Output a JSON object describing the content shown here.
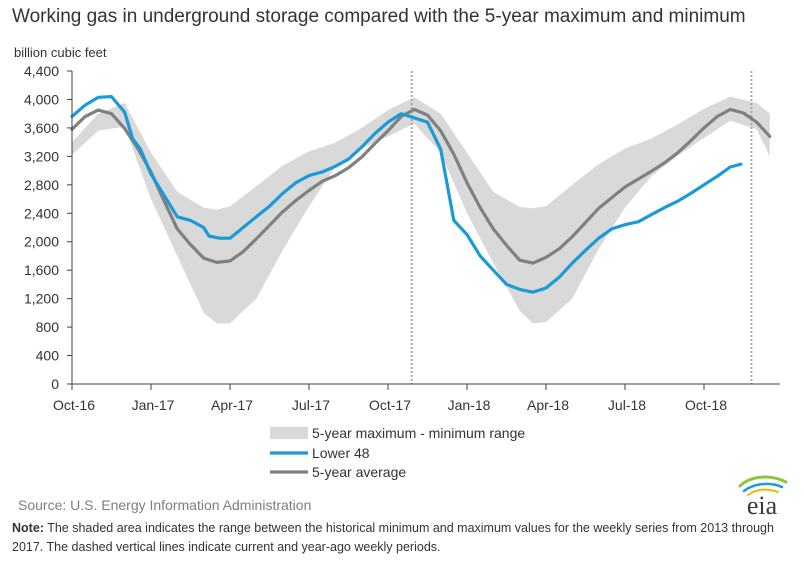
{
  "title": "Working gas in underground storage compared with the 5-year maximum and minimum",
  "source": "Source: U.S. Energy Information Administration",
  "logo_text": "eia",
  "note": {
    "label": "Note:",
    "text": " The shaded area indicates the range between the historical minimum and maximum values for the weekly series from 2013 through 2017. The dashed vertical lines indicate current and year-ago weekly periods."
  },
  "colors": {
    "lower48": "#1a9ad6",
    "average": "#808080",
    "range": "#d9d9d9",
    "dashed": "#a6a6a6",
    "axis": "#404040"
  },
  "chart_data": {
    "type": "line",
    "title": "Working gas in underground storage compared with the 5-year maximum and minimum",
    "ylabel": "billion cubic feet",
    "xlabel": "",
    "ylim": [
      0,
      4400
    ],
    "yticks": [
      0,
      400,
      800,
      1200,
      1600,
      2000,
      2400,
      2800,
      3200,
      3600,
      4000,
      4400
    ],
    "ytick_labels": [
      "0",
      "400",
      "800",
      "1,200",
      "1,600",
      "2,000",
      "2,400",
      "2,800",
      "3,200",
      "3,600",
      "4,000",
      "4,400"
    ],
    "x_unit": "months since Oct-16",
    "xlim": [
      0,
      26.5
    ],
    "xticks": [
      0,
      3,
      6,
      9,
      12,
      15,
      18,
      21,
      24
    ],
    "xtick_labels": [
      "Oct-16",
      "Jan-17",
      "Apr-17",
      "Jul-17",
      "Oct-17",
      "Jan-18",
      "Apr-18",
      "Jul-18",
      "Oct-18"
    ],
    "vlines": [
      12.9,
      25.8
    ],
    "grid": false,
    "legend": {
      "placement": "bottom-center",
      "entries": [
        "5-year maximum - minimum range",
        "Lower 48",
        "5-year average"
      ]
    },
    "range": {
      "name": "5-year maximum - minimum range",
      "x": [
        0,
        1,
        2,
        3,
        4,
        5,
        5.5,
        6,
        7,
        8,
        9,
        10,
        11,
        12,
        13,
        14,
        15,
        16,
        17,
        17.5,
        18,
        19,
        20,
        21,
        22,
        23,
        24,
        25,
        26,
        26.5
      ],
      "max": [
        3400,
        3800,
        3950,
        3250,
        2700,
        2480,
        2450,
        2500,
        2780,
        3070,
        3270,
        3390,
        3600,
        3850,
        4030,
        3800,
        3250,
        2700,
        2490,
        2470,
        2500,
        2800,
        3090,
        3310,
        3450,
        3650,
        3870,
        4040,
        3950,
        3800
      ],
      "min": [
        3220,
        3560,
        3620,
        2600,
        1800,
        1000,
        850,
        850,
        1200,
        1880,
        2500,
        3050,
        3310,
        3480,
        3660,
        3250,
        2400,
        1700,
        1030,
        850,
        870,
        1200,
        1900,
        2480,
        2920,
        3210,
        3460,
        3700,
        3580,
        3200
      ]
    },
    "series": [
      {
        "name": "Lower 48",
        "x": [
          0,
          0.5,
          1,
          1.5,
          2,
          2.3,
          2.6,
          3,
          3.5,
          4,
          4.5,
          5,
          5.2,
          5.6,
          6,
          6.5,
          7,
          7.5,
          8,
          8.5,
          9,
          9.5,
          10,
          10.5,
          11,
          11.5,
          12,
          12.5,
          13,
          13.5,
          14,
          14.5,
          15,
          15.5,
          16,
          16.5,
          17,
          17.5,
          18,
          18.5,
          19,
          19.5,
          20,
          20.5,
          21,
          21.5,
          22,
          22.5,
          23,
          23.5,
          24,
          24.5,
          25,
          25.4
        ],
        "values": [
          3760,
          3920,
          4030,
          4040,
          3820,
          3450,
          3300,
          2950,
          2650,
          2350,
          2300,
          2200,
          2080,
          2050,
          2050,
          2200,
          2350,
          2500,
          2680,
          2830,
          2930,
          2980,
          3060,
          3160,
          3330,
          3520,
          3680,
          3800,
          3740,
          3680,
          3300,
          2300,
          2100,
          1800,
          1600,
          1400,
          1330,
          1290,
          1350,
          1500,
          1700,
          1880,
          2050,
          2180,
          2240,
          2280,
          2380,
          2480,
          2570,
          2680,
          2800,
          2920,
          3050,
          3090
        ]
      },
      {
        "name": "5-year average",
        "x": [
          0,
          0.5,
          1,
          1.5,
          2,
          2.5,
          3,
          3.5,
          4,
          4.5,
          5,
          5.5,
          6,
          6.5,
          7,
          7.5,
          8,
          8.5,
          9,
          9.5,
          10,
          10.5,
          11,
          11.5,
          12,
          12.5,
          13,
          13.5,
          14,
          14.5,
          15,
          15.5,
          16,
          16.5,
          17,
          17.5,
          18,
          18.5,
          19,
          19.5,
          20,
          20.5,
          21,
          21.5,
          22,
          22.5,
          23,
          23.5,
          24,
          24.5,
          25,
          25.5,
          26,
          26.5
        ],
        "values": [
          3580,
          3760,
          3850,
          3800,
          3590,
          3310,
          2980,
          2570,
          2180,
          1960,
          1770,
          1710,
          1730,
          1860,
          2040,
          2230,
          2420,
          2580,
          2720,
          2850,
          2930,
          3040,
          3190,
          3380,
          3560,
          3760,
          3860,
          3780,
          3560,
          3230,
          2830,
          2480,
          2180,
          1950,
          1740,
          1700,
          1780,
          1900,
          2070,
          2270,
          2470,
          2620,
          2770,
          2880,
          2990,
          3110,
          3250,
          3420,
          3600,
          3760,
          3860,
          3810,
          3680,
          3480
        ]
      }
    ]
  }
}
